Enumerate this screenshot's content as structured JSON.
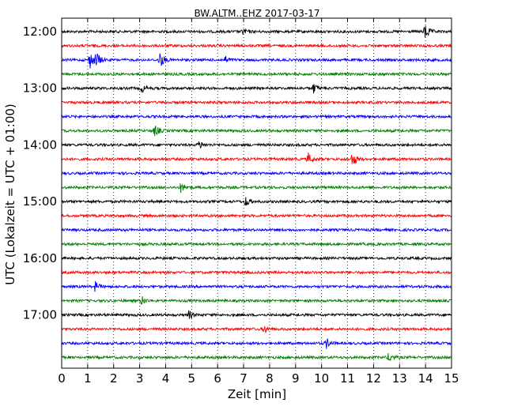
{
  "chart_data": {
    "type": "line",
    "title": "BW.ALTM..EHZ 2017-03-17",
    "xlabel": "Zeit  [min]",
    "ylabel": "UTC (Lokalzeit = UTC + 01:00)",
    "xlim": [
      0,
      15
    ],
    "x_ticks": [
      "0",
      "1",
      "2",
      "3",
      "4",
      "5",
      "6",
      "7",
      "8",
      "9",
      "10",
      "11",
      "12",
      "13",
      "14",
      "15"
    ],
    "y_ticks": [
      {
        "label": "12:00",
        "row": 0
      },
      {
        "label": "13:00",
        "row": 4
      },
      {
        "label": "14:00",
        "row": 8
      },
      {
        "label": "15:00",
        "row": 12
      },
      {
        "label": "16:00",
        "row": 16
      },
      {
        "label": "17:00",
        "row": 20
      }
    ],
    "grid": true,
    "grid_style": "dotted-vertical",
    "series_colors": [
      "#000000",
      "#ff0000",
      "#0000ff",
      "#008000"
    ],
    "traces": [
      {
        "start": "12:00",
        "events": [
          [
            7.0,
            0.4
          ],
          [
            14.0,
            1.0
          ]
        ]
      },
      {
        "start": "12:15",
        "events": []
      },
      {
        "start": "12:30",
        "events": [
          [
            1.1,
            1.0
          ],
          [
            1.35,
            0.9
          ],
          [
            3.8,
            1.0
          ],
          [
            6.3,
            0.4
          ]
        ]
      },
      {
        "start": "12:45",
        "events": []
      },
      {
        "start": "13:00",
        "events": [
          [
            3.1,
            0.5
          ],
          [
            9.7,
            0.6
          ]
        ]
      },
      {
        "start": "13:15",
        "events": []
      },
      {
        "start": "13:30",
        "events": []
      },
      {
        "start": "13:45",
        "events": [
          [
            3.6,
            0.7
          ]
        ]
      },
      {
        "start": "14:00",
        "events": [
          [
            5.3,
            0.5
          ]
        ]
      },
      {
        "start": "14:15",
        "events": [
          [
            9.5,
            0.7
          ],
          [
            11.2,
            0.9
          ]
        ]
      },
      {
        "start": "14:30",
        "events": []
      },
      {
        "start": "14:45",
        "events": [
          [
            4.6,
            0.6
          ]
        ]
      },
      {
        "start": "15:00",
        "events": [
          [
            7.1,
            0.6
          ]
        ]
      },
      {
        "start": "15:15",
        "events": []
      },
      {
        "start": "15:30",
        "events": []
      },
      {
        "start": "15:45",
        "events": []
      },
      {
        "start": "16:00",
        "events": []
      },
      {
        "start": "16:15",
        "events": []
      },
      {
        "start": "16:30",
        "events": [
          [
            1.3,
            0.6
          ]
        ]
      },
      {
        "start": "16:45",
        "events": [
          [
            3.1,
            0.5
          ]
        ]
      },
      {
        "start": "17:00",
        "events": [
          [
            4.9,
            0.5
          ]
        ]
      },
      {
        "start": "17:15",
        "events": [
          [
            7.8,
            0.5
          ]
        ]
      },
      {
        "start": "17:30",
        "events": [
          [
            10.2,
            0.6
          ]
        ]
      },
      {
        "start": "17:45",
        "events": [
          [
            12.6,
            0.6
          ]
        ]
      }
    ]
  }
}
